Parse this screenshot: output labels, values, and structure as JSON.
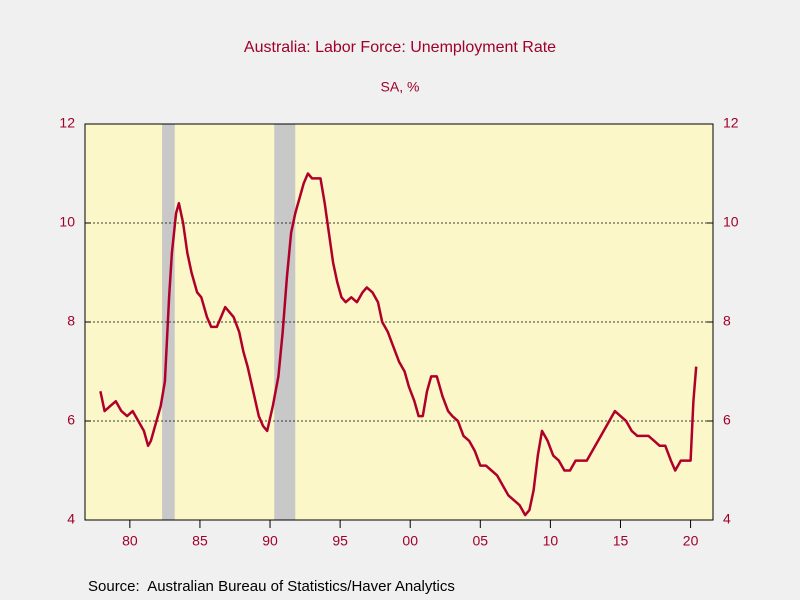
{
  "chart_data": {
    "type": "line",
    "title": "Australia: Labor Force: Unemployment Rate",
    "subtitle": "SA, %",
    "source": "Source:  Australian Bureau of Statistics/Haver Analytics",
    "x": [
      1977.9,
      1978.2,
      1978.6,
      1979.0,
      1979.4,
      1979.8,
      1980.2,
      1980.6,
      1981.0,
      1981.3,
      1981.5,
      1981.8,
      1982.2,
      1982.5,
      1982.8,
      1983.0,
      1983.3,
      1983.5,
      1983.8,
      1984.1,
      1984.4,
      1984.8,
      1985.1,
      1985.5,
      1985.8,
      1986.2,
      1986.5,
      1986.8,
      1987.1,
      1987.4,
      1987.8,
      1988.1,
      1988.4,
      1988.8,
      1989.2,
      1989.5,
      1989.8,
      1990.2,
      1990.6,
      1990.9,
      1991.2,
      1991.5,
      1991.8,
      1992.1,
      1992.4,
      1992.7,
      1993.0,
      1993.3,
      1993.6,
      1993.9,
      1994.2,
      1994.5,
      1994.8,
      1995.1,
      1995.4,
      1995.8,
      1996.2,
      1996.6,
      1996.9,
      1997.3,
      1997.7,
      1998.0,
      1998.4,
      1998.8,
      1999.2,
      1999.6,
      1999.9,
      2000.3,
      2000.6,
      2000.9,
      2001.2,
      2001.5,
      2001.9,
      2002.3,
      2002.7,
      2003.0,
      2003.4,
      2003.8,
      2004.2,
      2004.6,
      2005.0,
      2005.4,
      2005.8,
      2006.2,
      2006.6,
      2007.0,
      2007.4,
      2007.8,
      2008.2,
      2008.5,
      2008.8,
      2009.1,
      2009.4,
      2009.8,
      2010.2,
      2010.6,
      2011.0,
      2011.4,
      2011.8,
      2012.2,
      2012.6,
      2013.0,
      2013.4,
      2013.8,
      2014.2,
      2014.6,
      2015.0,
      2015.4,
      2015.8,
      2016.2,
      2016.6,
      2017.0,
      2017.4,
      2017.8,
      2018.2,
      2018.6,
      2018.9,
      2019.3,
      2019.7,
      2020.0,
      2020.2,
      2020.4
    ],
    "series": [
      {
        "color": "#b0002a",
        "values": [
          6.6,
          6.2,
          6.3,
          6.4,
          6.2,
          6.1,
          6.2,
          6.0,
          5.8,
          5.5,
          5.6,
          5.9,
          6.3,
          6.8,
          8.5,
          9.4,
          10.2,
          10.4,
          10.0,
          9.4,
          9.0,
          8.6,
          8.5,
          8.1,
          7.9,
          7.9,
          8.1,
          8.3,
          8.2,
          8.1,
          7.8,
          7.4,
          7.1,
          6.6,
          6.1,
          5.9,
          5.8,
          6.3,
          6.9,
          7.8,
          8.9,
          9.8,
          10.2,
          10.5,
          10.8,
          11.0,
          10.9,
          10.9,
          10.9,
          10.4,
          9.8,
          9.2,
          8.8,
          8.5,
          8.4,
          8.5,
          8.4,
          8.6,
          8.7,
          8.6,
          8.4,
          8.0,
          7.8,
          7.5,
          7.2,
          7.0,
          6.7,
          6.4,
          6.1,
          6.1,
          6.6,
          6.9,
          6.9,
          6.5,
          6.2,
          6.1,
          6.0,
          5.7,
          5.6,
          5.4,
          5.1,
          5.1,
          5.0,
          4.9,
          4.7,
          4.5,
          4.4,
          4.3,
          4.1,
          4.2,
          4.6,
          5.3,
          5.8,
          5.6,
          5.3,
          5.2,
          5.0,
          5.0,
          5.2,
          5.2,
          5.2,
          5.4,
          5.6,
          5.8,
          6.0,
          6.2,
          6.1,
          6.0,
          5.8,
          5.7,
          5.7,
          5.7,
          5.6,
          5.5,
          5.5,
          5.2,
          5.0,
          5.2,
          5.2,
          5.2,
          6.4,
          7.1
        ]
      }
    ],
    "recessions": [
      {
        "start": 1982.3,
        "end": 1983.2
      },
      {
        "start": 1990.3,
        "end": 1991.8
      }
    ],
    "xlim": [
      1976.8,
      2021.6
    ],
    "xticks": [
      {
        "value": 1980,
        "label": "80"
      },
      {
        "value": 1985,
        "label": "85"
      },
      {
        "value": 1990,
        "label": "90"
      },
      {
        "value": 1995,
        "label": "95"
      },
      {
        "value": 2000,
        "label": "00"
      },
      {
        "value": 2005,
        "label": "05"
      },
      {
        "value": 2010,
        "label": "10"
      },
      {
        "value": 2015,
        "label": "15"
      },
      {
        "value": 2020,
        "label": "20"
      }
    ],
    "ylim": [
      4,
      12
    ],
    "yticks": [
      4,
      6,
      8,
      10,
      12
    ],
    "y2lim": [
      4,
      12
    ],
    "y2ticks": [
      4,
      6,
      8,
      10,
      12
    ],
    "grid": true
  }
}
